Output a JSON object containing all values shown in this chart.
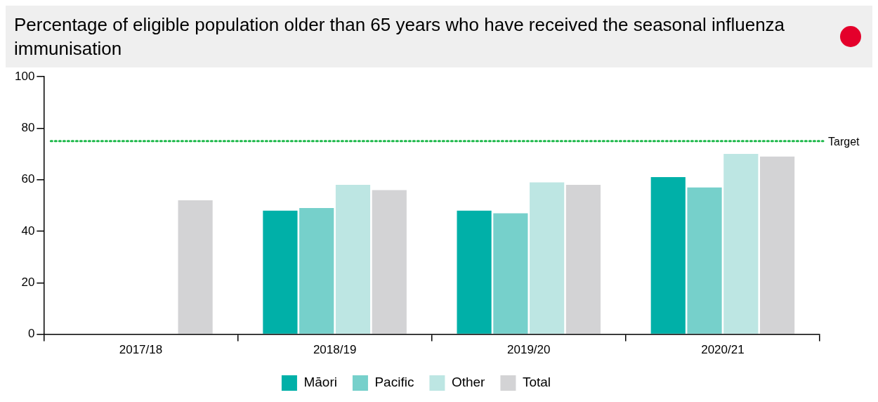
{
  "chart_data": {
    "type": "bar",
    "title": "Percentage of eligible population older than 65 years who have received the seasonal influenza immunisation",
    "categories": [
      "2017/18",
      "2018/19",
      "2019/20",
      "2020/21"
    ],
    "series": [
      {
        "name": "Māori",
        "color": "#00b0a8",
        "values": [
          null,
          48,
          48,
          61
        ]
      },
      {
        "name": "Pacific",
        "color": "#76d0cb",
        "values": [
          null,
          49,
          47,
          57
        ]
      },
      {
        "name": "Other",
        "color": "#bde6e3",
        "values": [
          null,
          58,
          59,
          70
        ]
      },
      {
        "name": "Total",
        "color": "#d3d3d5",
        "values": [
          52,
          56,
          58,
          69
        ]
      }
    ],
    "ylim": [
      0,
      100
    ],
    "yticks": [
      0,
      20,
      40,
      60,
      80,
      100
    ],
    "ref_lines": [
      {
        "axis": "y",
        "value": 75,
        "label": "Target",
        "color": "#1db84a",
        "line_style": "dotted"
      }
    ],
    "legend": "bottom"
  }
}
